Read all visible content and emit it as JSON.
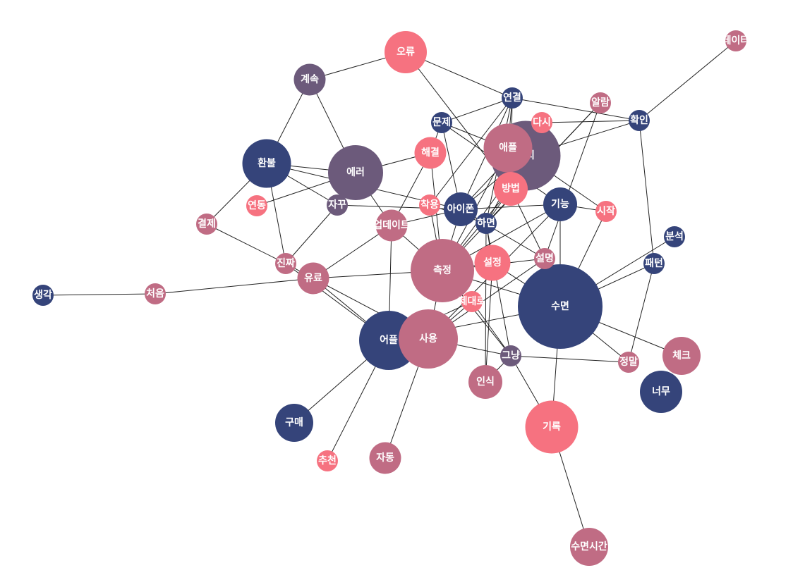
{
  "colors": {
    "navy": "#35447a",
    "purple": "#6c5a7b",
    "mauve": "#c06c84",
    "salmon": "#f67280",
    "edge": "#222222"
  },
  "nodes": [
    {
      "id": "데이터",
      "size": 1,
      "group": "mauve"
    },
    {
      "id": "오류",
      "size": 2,
      "group": "salmon"
    },
    {
      "id": "계속",
      "size": 1.5,
      "group": "purple"
    },
    {
      "id": "연결",
      "size": 1,
      "group": "navy"
    },
    {
      "id": "알람",
      "size": 1,
      "group": "mauve"
    },
    {
      "id": "문제",
      "size": 1,
      "group": "navy"
    },
    {
      "id": "다시",
      "size": 1,
      "group": "salmon"
    },
    {
      "id": "확인",
      "size": 1,
      "group": "navy"
    },
    {
      "id": "애플",
      "size": 2.3,
      "group": "mauve"
    },
    {
      "id": "워치",
      "size": 3.3,
      "group": "purple"
    },
    {
      "id": "해결",
      "size": 1.5,
      "group": "salmon"
    },
    {
      "id": "환불",
      "size": 2.3,
      "group": "navy"
    },
    {
      "id": "에러",
      "size": 2.6,
      "group": "purple"
    },
    {
      "id": "방법",
      "size": 1.6,
      "group": "salmon"
    },
    {
      "id": "연동",
      "size": 1,
      "group": "salmon"
    },
    {
      "id": "자꾸",
      "size": 1,
      "group": "purple"
    },
    {
      "id": "착용",
      "size": 1,
      "group": "salmon"
    },
    {
      "id": "아이폰",
      "size": 1.6,
      "group": "navy"
    },
    {
      "id": "기능",
      "size": 1.6,
      "group": "navy"
    },
    {
      "id": "시작",
      "size": 1,
      "group": "salmon"
    },
    {
      "id": "결제",
      "size": 1,
      "group": "mauve"
    },
    {
      "id": "업데이트",
      "size": 1.5,
      "group": "mauve"
    },
    {
      "id": "하면",
      "size": 1,
      "group": "navy"
    },
    {
      "id": "분석",
      "size": 1,
      "group": "navy"
    },
    {
      "id": "진짜",
      "size": 1,
      "group": "mauve"
    },
    {
      "id": "측정",
      "size": 3,
      "group": "mauve"
    },
    {
      "id": "설정",
      "size": 1.7,
      "group": "salmon"
    },
    {
      "id": "설명",
      "size": 1,
      "group": "mauve"
    },
    {
      "id": "패턴",
      "size": 1,
      "group": "navy"
    },
    {
      "id": "유료",
      "size": 1.5,
      "group": "mauve"
    },
    {
      "id": "생각",
      "size": 1,
      "group": "navy"
    },
    {
      "id": "처음",
      "size": 1,
      "group": "mauve"
    },
    {
      "id": "제대로",
      "size": 1,
      "group": "salmon"
    },
    {
      "id": "수면",
      "size": 4,
      "group": "navy"
    },
    {
      "id": "어플",
      "size": 2.8,
      "group": "navy"
    },
    {
      "id": "사용",
      "size": 2.8,
      "group": "mauve"
    },
    {
      "id": "그냥",
      "size": 1,
      "group": "purple"
    },
    {
      "id": "체크",
      "size": 1.8,
      "group": "mauve"
    },
    {
      "id": "정말",
      "size": 1,
      "group": "mauve"
    },
    {
      "id": "인식",
      "size": 1.6,
      "group": "mauve"
    },
    {
      "id": "너무",
      "size": 2,
      "group": "navy"
    },
    {
      "id": "구매",
      "size": 1.8,
      "group": "navy"
    },
    {
      "id": "기록",
      "size": 2.5,
      "group": "salmon"
    },
    {
      "id": "추천",
      "size": 1,
      "group": "salmon"
    },
    {
      "id": "자동",
      "size": 1.5,
      "group": "mauve"
    },
    {
      "id": "수면시간",
      "size": 1.8,
      "group": "mauve"
    }
  ],
  "edges": [
    [
      "데이터",
      "확인"
    ],
    [
      "오류",
      "계속"
    ],
    [
      "오류",
      "연결"
    ],
    [
      "오류",
      "방법"
    ],
    [
      "계속",
      "환불"
    ],
    [
      "계속",
      "에러"
    ],
    [
      "연결",
      "문제"
    ],
    [
      "연결",
      "확인"
    ],
    [
      "연결",
      "착용"
    ],
    [
      "연결",
      "아이폰"
    ],
    [
      "연결",
      "하면"
    ],
    [
      "연결",
      "애플"
    ],
    [
      "연결",
      "방법"
    ],
    [
      "알람",
      "측정"
    ],
    [
      "알람",
      "설명"
    ],
    [
      "알람",
      "하면"
    ],
    [
      "확인",
      "워치"
    ],
    [
      "확인",
      "패턴"
    ],
    [
      "확인",
      "다시"
    ],
    [
      "문제",
      "워치"
    ],
    [
      "문제",
      "해결"
    ],
    [
      "문제",
      "아이폰"
    ],
    [
      "문제",
      "기능"
    ],
    [
      "다시",
      "아이폰"
    ],
    [
      "다시",
      "하면"
    ],
    [
      "애플",
      "워치"
    ],
    [
      "애플",
      "측정"
    ],
    [
      "워치",
      "아이폰"
    ],
    [
      "워치",
      "측정"
    ],
    [
      "워치",
      "시작"
    ],
    [
      "해결",
      "에러"
    ],
    [
      "해결",
      "업데이트"
    ],
    [
      "해결",
      "측정"
    ],
    [
      "환불",
      "에러"
    ],
    [
      "환불",
      "자꾸"
    ],
    [
      "환불",
      "결제"
    ],
    [
      "환불",
      "진짜"
    ],
    [
      "환불",
      "아이폰"
    ],
    [
      "에러",
      "연동"
    ],
    [
      "에러",
      "업데이트"
    ],
    [
      "에러",
      "자꾸"
    ],
    [
      "자꾸",
      "진짜"
    ],
    [
      "자꾸",
      "아이폰"
    ],
    [
      "방법",
      "측정"
    ],
    [
      "방법",
      "설명"
    ],
    [
      "방법",
      "하면"
    ],
    [
      "착용",
      "측정"
    ],
    [
      "착용",
      "하면"
    ],
    [
      "아이폰",
      "하면"
    ],
    [
      "아이폰",
      "기능"
    ],
    [
      "아이폰",
      "측정"
    ],
    [
      "아이폰",
      "업데이트"
    ],
    [
      "아이폰",
      "설명"
    ],
    [
      "하면",
      "그냥"
    ],
    [
      "하면",
      "설정"
    ],
    [
      "하면",
      "인식"
    ],
    [
      "기능",
      "측정"
    ],
    [
      "기능",
      "수면"
    ],
    [
      "기능",
      "사용"
    ],
    [
      "기능",
      "시작"
    ],
    [
      "시작",
      "수면"
    ],
    [
      "결제",
      "진짜"
    ],
    [
      "업데이트",
      "어플"
    ],
    [
      "업데이트",
      "측정"
    ],
    [
      "업데이트",
      "유료"
    ],
    [
      "진짜",
      "유료"
    ],
    [
      "진짜",
      "어플"
    ],
    [
      "측정",
      "유료"
    ],
    [
      "측정",
      "수면"
    ],
    [
      "측정",
      "설명"
    ],
    [
      "측정",
      "설정"
    ],
    [
      "측정",
      "사용"
    ],
    [
      "측정",
      "그냥"
    ],
    [
      "설정",
      "수면"
    ],
    [
      "설정",
      "인식"
    ],
    [
      "설명",
      "수면"
    ],
    [
      "설명",
      "사용"
    ],
    [
      "패턴",
      "수면"
    ],
    [
      "패턴",
      "정말"
    ],
    [
      "분석",
      "수면"
    ],
    [
      "유료",
      "어플"
    ],
    [
      "유료",
      "처음"
    ],
    [
      "유료",
      "사용"
    ],
    [
      "생각",
      "처음"
    ],
    [
      "제대로",
      "그냥"
    ],
    [
      "제대로",
      "사용"
    ],
    [
      "제대로",
      "어플"
    ],
    [
      "수면",
      "어플"
    ],
    [
      "수면",
      "기록"
    ],
    [
      "수면",
      "체크"
    ],
    [
      "수면",
      "정말"
    ],
    [
      "어플",
      "사용"
    ],
    [
      "어플",
      "구매"
    ],
    [
      "어플",
      "추천"
    ],
    [
      "사용",
      "자동"
    ],
    [
      "사용",
      "그냥"
    ],
    [
      "그냥",
      "정말"
    ],
    [
      "그냥",
      "인식"
    ],
    [
      "그냥",
      "기록"
    ],
    [
      "기록",
      "수면시간"
    ]
  ]
}
